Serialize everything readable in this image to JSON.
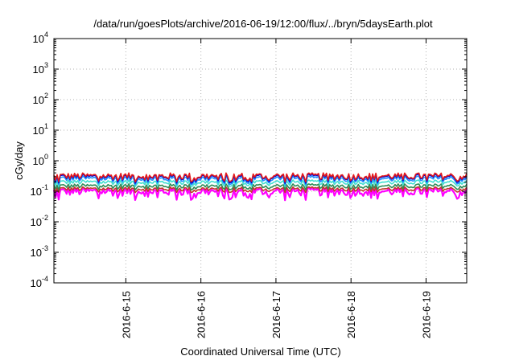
{
  "chart_data": {
    "type": "line",
    "title": "/data/run/goesPlots/archive/2016-06-19/12:00/flux/../bryn/5daysEarth.plot",
    "xlabel": "Coordinated Universal Time (UTC)",
    "ylabel": "cGy/day",
    "yscale": "log",
    "ylim": [
      0.0001,
      10000
    ],
    "xlim": [
      "2016-06-14 01:00",
      "2016-06-19 13:00"
    ],
    "grid": true,
    "x_ticks": [
      "2016-6-15",
      "2016-6-16",
      "2016-6-17",
      "2016-6-18",
      "2016-6-19"
    ],
    "y_ticks": [
      {
        "base": "10",
        "exp": "-4",
        "value": 0.0001
      },
      {
        "base": "10",
        "exp": "-3",
        "value": 0.001
      },
      {
        "base": "10",
        "exp": "-2",
        "value": 0.01
      },
      {
        "base": "10",
        "exp": "-1",
        "value": 0.1
      },
      {
        "base": "10",
        "exp": "0",
        "value": 1
      },
      {
        "base": "10",
        "exp": "1",
        "value": 10
      },
      {
        "base": "10",
        "exp": "2",
        "value": 100
      },
      {
        "base": "10",
        "exp": "3",
        "value": 1000
      },
      {
        "base": "10",
        "exp": "4",
        "value": 10000
      }
    ],
    "series": [
      {
        "color": "#ff00ff",
        "base": 0.1,
        "spread": 0.03,
        "dip": 0.05
      },
      {
        "color": "#c0392b",
        "base": 0.12,
        "spread": 0.02,
        "dip": 0.09
      },
      {
        "color": "#2e8b57",
        "base": 0.15,
        "spread": 0.025,
        "dip": 0.11
      },
      {
        "color": "#40e0d0",
        "base": 0.2,
        "spread": 0.035,
        "dip": 0.14
      },
      {
        "color": "#1e90ff",
        "base": 0.26,
        "spread": 0.06,
        "dip": 0.16
      },
      {
        "color": "#0000cd",
        "base": 0.3,
        "spread": 0.07,
        "dip": 0.18
      },
      {
        "color": "#e41a1c",
        "base": 0.32,
        "spread": 0.08,
        "dip": 0.2
      }
    ]
  }
}
